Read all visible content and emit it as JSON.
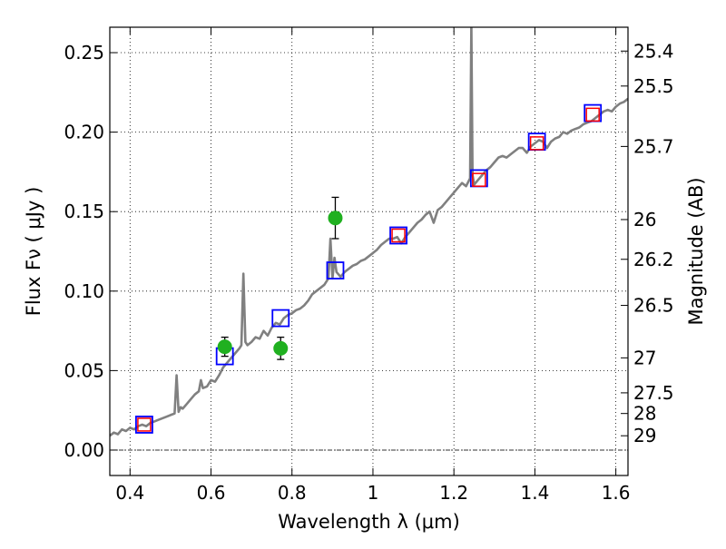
{
  "chart_data": {
    "type": "line",
    "xlabel": "Wavelength  λ (μm)",
    "ylabel": "Flux  Fν  ( μJy )",
    "ylabel_right": "Magnitude (AB)",
    "xlim": [
      0.35,
      1.63
    ],
    "ylim": [
      -0.016,
      0.266
    ],
    "grid": true,
    "xticks": [
      0.4,
      0.6,
      0.8,
      1.0,
      1.2,
      1.4,
      1.6
    ],
    "xtick_labels": [
      "0.4",
      "0.6",
      "0.8",
      "1",
      "1.2",
      "1.4",
      "1.6"
    ],
    "yticks": [
      0.0,
      0.05,
      0.1,
      0.15,
      0.2,
      0.25
    ],
    "ytick_labels": [
      "0.00",
      "0.05",
      "0.10",
      "0.15",
      "0.20",
      "0.25"
    ],
    "right_ticks": [
      {
        "flux": 0.251,
        "label": "25.4"
      },
      {
        "flux": 0.229,
        "label": "25.5"
      },
      {
        "flux": 0.191,
        "label": "25.7"
      },
      {
        "flux": 0.145,
        "label": "26"
      },
      {
        "flux": 0.12,
        "label": "26.2"
      },
      {
        "flux": 0.091,
        "label": "26.5"
      },
      {
        "flux": 0.058,
        "label": "27"
      },
      {
        "flux": 0.036,
        "label": "27.5"
      },
      {
        "flux": 0.023,
        "label": "28"
      },
      {
        "flux": 0.009,
        "label": "29"
      }
    ],
    "reference_line": {
      "y": 0.0,
      "style": "dashed",
      "color": "#333333"
    },
    "series": [
      {
        "kind": "spectrum",
        "color": "#808080",
        "x": [
          0.35,
          0.36,
          0.37,
          0.38,
          0.39,
          0.4,
          0.41,
          0.42,
          0.43,
          0.44,
          0.45,
          0.46,
          0.47,
          0.48,
          0.49,
          0.5,
          0.51,
          0.515,
          0.52,
          0.525,
          0.53,
          0.54,
          0.55,
          0.56,
          0.57,
          0.575,
          0.58,
          0.59,
          0.6,
          0.61,
          0.62,
          0.63,
          0.64,
          0.65,
          0.66,
          0.67,
          0.675,
          0.68,
          0.685,
          0.69,
          0.7,
          0.71,
          0.72,
          0.73,
          0.74,
          0.75,
          0.76,
          0.77,
          0.78,
          0.79,
          0.8,
          0.81,
          0.82,
          0.83,
          0.84,
          0.85,
          0.86,
          0.87,
          0.88,
          0.89,
          0.895,
          0.9,
          0.905,
          0.91,
          0.92,
          0.93,
          0.94,
          0.95,
          0.96,
          0.97,
          0.98,
          0.99,
          1.0,
          1.01,
          1.02,
          1.03,
          1.04,
          1.05,
          1.06,
          1.07,
          1.08,
          1.09,
          1.1,
          1.11,
          1.12,
          1.13,
          1.14,
          1.15,
          1.16,
          1.17,
          1.18,
          1.19,
          1.2,
          1.21,
          1.22,
          1.23,
          1.24,
          1.243,
          1.246,
          1.25,
          1.26,
          1.27,
          1.28,
          1.29,
          1.3,
          1.31,
          1.32,
          1.33,
          1.34,
          1.35,
          1.36,
          1.37,
          1.38,
          1.39,
          1.4,
          1.41,
          1.42,
          1.43,
          1.44,
          1.45,
          1.46,
          1.47,
          1.48,
          1.49,
          1.5,
          1.51,
          1.52,
          1.53,
          1.54,
          1.55,
          1.56,
          1.57,
          1.58,
          1.59,
          1.6,
          1.61,
          1.62,
          1.63
        ],
        "y": [
          0.009,
          0.011,
          0.01,
          0.013,
          0.012,
          0.014,
          0.013,
          0.015,
          0.016,
          0.015,
          0.017,
          0.018,
          0.019,
          0.02,
          0.021,
          0.022,
          0.023,
          0.047,
          0.024,
          0.027,
          0.026,
          0.029,
          0.032,
          0.035,
          0.037,
          0.044,
          0.039,
          0.04,
          0.044,
          0.043,
          0.047,
          0.052,
          0.055,
          0.058,
          0.061,
          0.064,
          0.066,
          0.111,
          0.068,
          0.066,
          0.068,
          0.071,
          0.07,
          0.075,
          0.072,
          0.077,
          0.08,
          0.079,
          0.083,
          0.085,
          0.086,
          0.088,
          0.089,
          0.091,
          0.094,
          0.098,
          0.1,
          0.102,
          0.104,
          0.108,
          0.133,
          0.108,
          0.121,
          0.112,
          0.109,
          0.112,
          0.114,
          0.116,
          0.117,
          0.119,
          0.12,
          0.122,
          0.124,
          0.126,
          0.129,
          0.131,
          0.133,
          0.133,
          0.134,
          0.13,
          0.134,
          0.137,
          0.14,
          0.143,
          0.145,
          0.148,
          0.15,
          0.143,
          0.151,
          0.153,
          0.156,
          0.159,
          0.162,
          0.165,
          0.168,
          0.166,
          0.171,
          0.268,
          0.173,
          0.167,
          0.17,
          0.173,
          0.176,
          0.178,
          0.181,
          0.184,
          0.185,
          0.184,
          0.186,
          0.188,
          0.19,
          0.19,
          0.187,
          0.191,
          0.193,
          0.195,
          0.194,
          0.19,
          0.194,
          0.196,
          0.197,
          0.2,
          0.199,
          0.201,
          0.202,
          0.203,
          0.205,
          0.206,
          0.207,
          0.209,
          0.211,
          0.213,
          0.214,
          0.213,
          0.216,
          0.218,
          0.219,
          0.221
        ]
      },
      {
        "kind": "model-photometry",
        "marker": "open-square",
        "color": "#0000ff",
        "x": [
          0.435,
          0.634,
          0.772,
          0.907,
          1.063,
          1.262,
          1.405,
          1.543
        ],
        "y": [
          0.016,
          0.059,
          0.083,
          0.113,
          0.135,
          0.171,
          0.194,
          0.212
        ]
      },
      {
        "kind": "observed-photometry",
        "marker": "open-square",
        "color": "#ff0000",
        "x": [
          0.435,
          1.063,
          1.262,
          1.405,
          1.543
        ],
        "y": [
          0.016,
          0.135,
          0.17,
          0.193,
          0.211
        ]
      },
      {
        "kind": "observed-photometry",
        "marker": "filled-circle",
        "color": "#20b020",
        "x": [
          0.634,
          0.772,
          0.907
        ],
        "y": [
          0.065,
          0.064,
          0.146
        ],
        "yerr": [
          0.006,
          0.007,
          0.013
        ]
      }
    ]
  }
}
